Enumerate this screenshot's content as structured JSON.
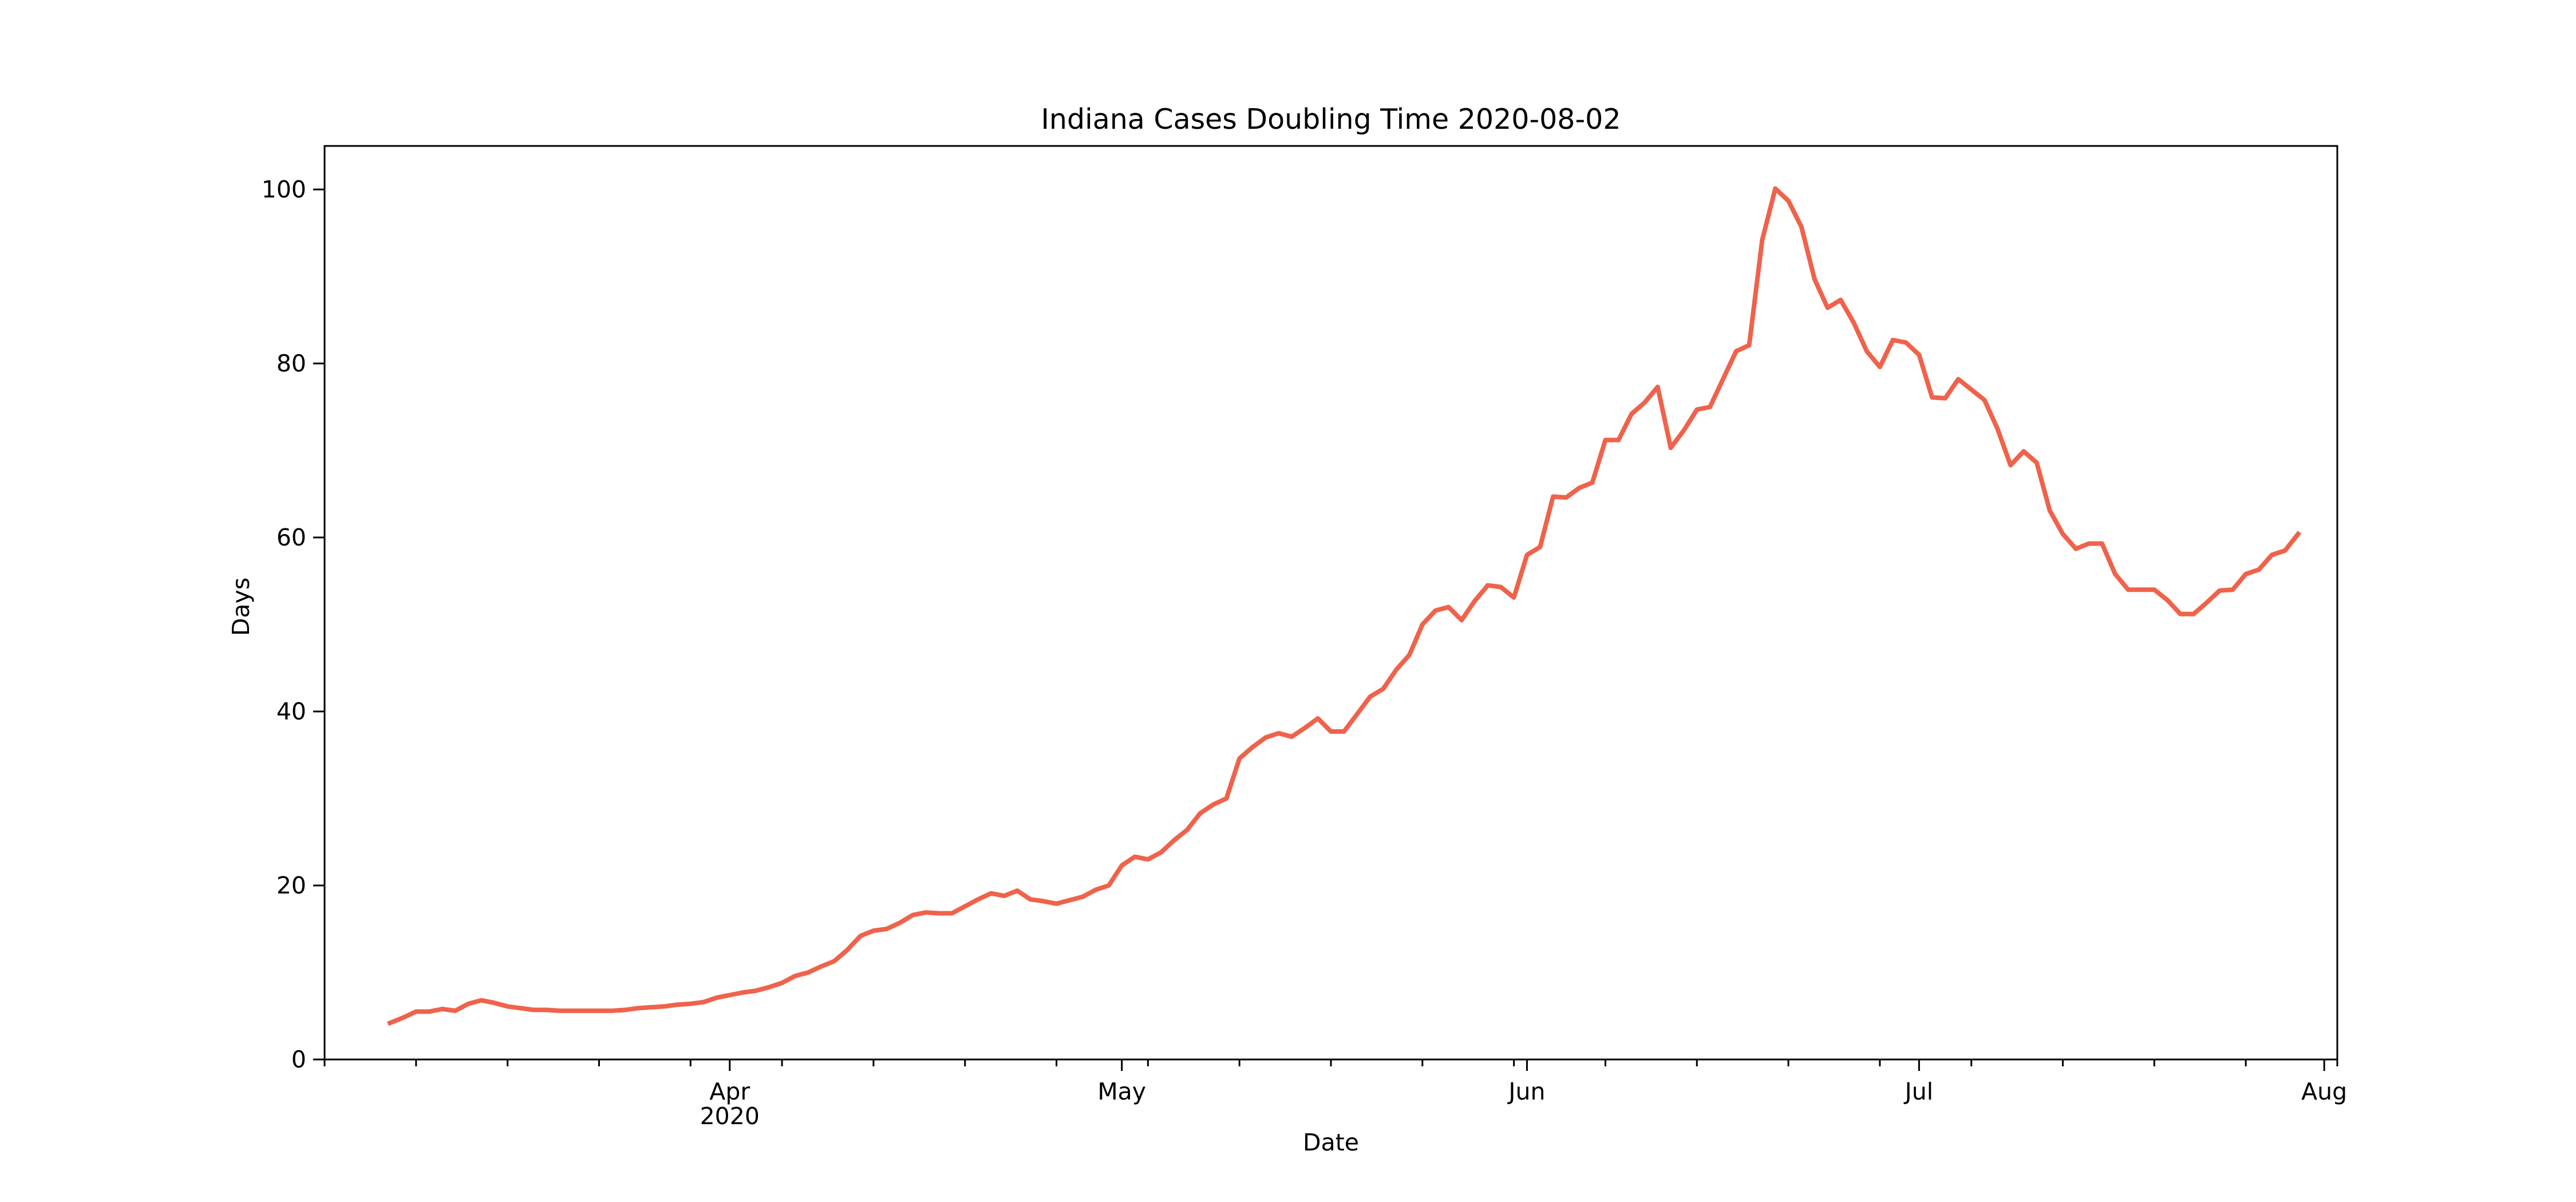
{
  "chart_data": {
    "type": "line",
    "title": "Indiana Cases Doubling Time 2020-08-02",
    "xlabel": "Date",
    "ylabel": "Days",
    "xlim": [
      "2020-03-01",
      "2020-08-02"
    ],
    "ylim": [
      0,
      105
    ],
    "grid": false,
    "legend": "none",
    "x_ticks": [
      {
        "date": "2020-04-01",
        "label": "Apr",
        "sublabel": "2020"
      },
      {
        "date": "2020-05-01",
        "label": "May",
        "sublabel": ""
      },
      {
        "date": "2020-06-01",
        "label": "Jun",
        "sublabel": ""
      },
      {
        "date": "2020-07-01",
        "label": "Jul",
        "sublabel": ""
      },
      {
        "date": "2020-08-01",
        "label": "Aug",
        "sublabel": ""
      }
    ],
    "y_ticks": [
      0,
      20,
      40,
      60,
      80,
      100
    ],
    "series": [
      {
        "color": "#f0624b",
        "points": [
          [
            "2020-03-06",
            4.2
          ],
          [
            "2020-03-07",
            4.8
          ],
          [
            "2020-03-08",
            5.5
          ],
          [
            "2020-03-09",
            5.5
          ],
          [
            "2020-03-10",
            5.8
          ],
          [
            "2020-03-11",
            5.6
          ],
          [
            "2020-03-12",
            6.4
          ],
          [
            "2020-03-13",
            6.8
          ],
          [
            "2020-03-14",
            6.5
          ],
          [
            "2020-03-15",
            6.1
          ],
          [
            "2020-03-16",
            5.9
          ],
          [
            "2020-03-17",
            5.7
          ],
          [
            "2020-03-18",
            5.7
          ],
          [
            "2020-03-19",
            5.6
          ],
          [
            "2020-03-20",
            5.6
          ],
          [
            "2020-03-21",
            5.6
          ],
          [
            "2020-03-22",
            5.6
          ],
          [
            "2020-03-23",
            5.6
          ],
          [
            "2020-03-24",
            5.7
          ],
          [
            "2020-03-25",
            5.9
          ],
          [
            "2020-03-26",
            6.0
          ],
          [
            "2020-03-27",
            6.1
          ],
          [
            "2020-03-28",
            6.3
          ],
          [
            "2020-03-29",
            6.4
          ],
          [
            "2020-03-30",
            6.6
          ],
          [
            "2020-03-31",
            7.1
          ],
          [
            "2020-04-01",
            7.4
          ],
          [
            "2020-04-02",
            7.7
          ],
          [
            "2020-04-03",
            7.9
          ],
          [
            "2020-04-04",
            8.3
          ],
          [
            "2020-04-05",
            8.8
          ],
          [
            "2020-04-06",
            9.6
          ],
          [
            "2020-04-07",
            10.0
          ],
          [
            "2020-04-08",
            10.7
          ],
          [
            "2020-04-09",
            11.3
          ],
          [
            "2020-04-10",
            12.6
          ],
          [
            "2020-04-11",
            14.2
          ],
          [
            "2020-04-12",
            14.8
          ],
          [
            "2020-04-13",
            15.0
          ],
          [
            "2020-04-14",
            15.7
          ],
          [
            "2020-04-15",
            16.6
          ],
          [
            "2020-04-16",
            16.9
          ],
          [
            "2020-04-17",
            16.8
          ],
          [
            "2020-04-18",
            16.8
          ],
          [
            "2020-04-19",
            17.6
          ],
          [
            "2020-04-20",
            18.4
          ],
          [
            "2020-04-21",
            19.1
          ],
          [
            "2020-04-22",
            18.8
          ],
          [
            "2020-04-23",
            19.4
          ],
          [
            "2020-04-24",
            18.4
          ],
          [
            "2020-04-25",
            18.2
          ],
          [
            "2020-04-26",
            17.9
          ],
          [
            "2020-04-27",
            18.3
          ],
          [
            "2020-04-28",
            18.7
          ],
          [
            "2020-04-29",
            19.5
          ],
          [
            "2020-04-30",
            20.0
          ],
          [
            "2020-05-01",
            22.3
          ],
          [
            "2020-05-02",
            23.3
          ],
          [
            "2020-05-03",
            23.0
          ],
          [
            "2020-05-04",
            23.8
          ],
          [
            "2020-05-05",
            25.2
          ],
          [
            "2020-05-06",
            26.4
          ],
          [
            "2020-05-07",
            28.3
          ],
          [
            "2020-05-08",
            29.3
          ],
          [
            "2020-05-09",
            30.0
          ],
          [
            "2020-05-10",
            34.6
          ],
          [
            "2020-05-11",
            35.9
          ],
          [
            "2020-05-12",
            37.0
          ],
          [
            "2020-05-13",
            37.5
          ],
          [
            "2020-05-14",
            37.1
          ],
          [
            "2020-05-15",
            38.1
          ],
          [
            "2020-05-16",
            39.2
          ],
          [
            "2020-05-17",
            37.7
          ],
          [
            "2020-05-18",
            37.7
          ],
          [
            "2020-05-19",
            39.7
          ],
          [
            "2020-05-20",
            41.7
          ],
          [
            "2020-05-21",
            42.6
          ],
          [
            "2020-05-22",
            44.8
          ],
          [
            "2020-05-23",
            46.5
          ],
          [
            "2020-05-24",
            50.0
          ],
          [
            "2020-05-25",
            51.6
          ],
          [
            "2020-05-26",
            52.0
          ],
          [
            "2020-05-27",
            50.5
          ],
          [
            "2020-05-28",
            52.7
          ],
          [
            "2020-05-29",
            54.5
          ],
          [
            "2020-05-30",
            54.3
          ],
          [
            "2020-05-31",
            53.1
          ],
          [
            "2020-06-01",
            58.0
          ],
          [
            "2020-06-02",
            58.9
          ],
          [
            "2020-06-03",
            64.7
          ],
          [
            "2020-06-04",
            64.6
          ],
          [
            "2020-06-05",
            65.7
          ],
          [
            "2020-06-06",
            66.3
          ],
          [
            "2020-06-07",
            71.2
          ],
          [
            "2020-06-08",
            71.2
          ],
          [
            "2020-06-09",
            74.2
          ],
          [
            "2020-06-10",
            75.5
          ],
          [
            "2020-06-11",
            77.3
          ],
          [
            "2020-06-12",
            70.3
          ],
          [
            "2020-06-13",
            72.3
          ],
          [
            "2020-06-14",
            74.7
          ],
          [
            "2020-06-15",
            75.0
          ],
          [
            "2020-06-16",
            78.2
          ],
          [
            "2020-06-17",
            81.4
          ],
          [
            "2020-06-18",
            82.1
          ],
          [
            "2020-06-19",
            94.2
          ],
          [
            "2020-06-20",
            100.1
          ],
          [
            "2020-06-21",
            98.7
          ],
          [
            "2020-06-22",
            95.7
          ],
          [
            "2020-06-23",
            89.7
          ],
          [
            "2020-06-24",
            86.4
          ],
          [
            "2020-06-25",
            87.3
          ],
          [
            "2020-06-26",
            84.7
          ],
          [
            "2020-06-27",
            81.4
          ],
          [
            "2020-06-28",
            79.6
          ],
          [
            "2020-06-29",
            82.7
          ],
          [
            "2020-06-30",
            82.4
          ],
          [
            "2020-07-01",
            81.0
          ],
          [
            "2020-07-02",
            76.1
          ],
          [
            "2020-07-03",
            76.0
          ],
          [
            "2020-07-04",
            78.2
          ],
          [
            "2020-07-05",
            77.0
          ],
          [
            "2020-07-06",
            75.8
          ],
          [
            "2020-07-07",
            72.5
          ],
          [
            "2020-07-08",
            68.3
          ],
          [
            "2020-07-09",
            69.9
          ],
          [
            "2020-07-10",
            68.6
          ],
          [
            "2020-07-11",
            63.1
          ],
          [
            "2020-07-12",
            60.4
          ],
          [
            "2020-07-13",
            58.7
          ],
          [
            "2020-07-14",
            59.3
          ],
          [
            "2020-07-15",
            59.3
          ],
          [
            "2020-07-16",
            55.8
          ],
          [
            "2020-07-17",
            54.0
          ],
          [
            "2020-07-18",
            54.0
          ],
          [
            "2020-07-19",
            54.0
          ],
          [
            "2020-07-20",
            52.8
          ],
          [
            "2020-07-21",
            51.2
          ],
          [
            "2020-07-22",
            51.2
          ],
          [
            "2020-07-23",
            52.5
          ],
          [
            "2020-07-24",
            53.9
          ],
          [
            "2020-07-25",
            54.0
          ],
          [
            "2020-07-26",
            55.8
          ],
          [
            "2020-07-27",
            56.3
          ],
          [
            "2020-07-28",
            58.0
          ],
          [
            "2020-07-29",
            58.5
          ],
          [
            "2020-07-30",
            60.4
          ]
        ]
      }
    ]
  }
}
